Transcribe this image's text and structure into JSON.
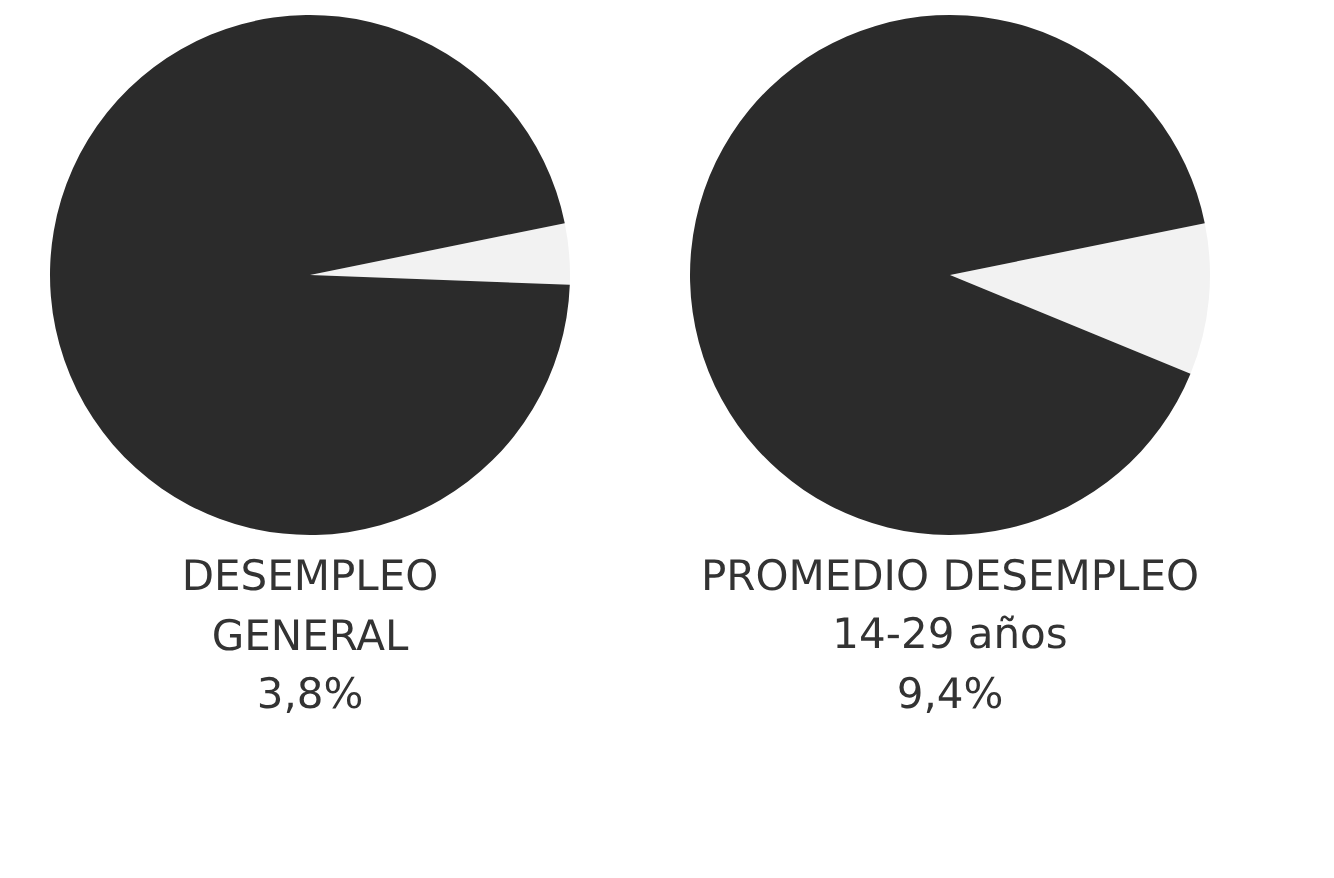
{
  "chart_data": [
    {
      "type": "pie",
      "title": "DESEMPLEO GENERAL",
      "categories": [
        null,
        null
      ],
      "values": [
        3.8,
        96.2
      ],
      "colors": [
        "#f2f2f2",
        "#2b2b2b"
      ],
      "annotations": [
        "3,8%"
      ]
    },
    {
      "type": "pie",
      "title": "PROMEDIO DESEMPLEO",
      "subtitle": "14-29 años",
      "categories": [
        null,
        null
      ],
      "values": [
        9.4,
        90.6
      ],
      "colors": [
        "#f2f2f2",
        "#2b2b2b"
      ],
      "annotations": [
        "9,4%"
      ]
    }
  ]
}
